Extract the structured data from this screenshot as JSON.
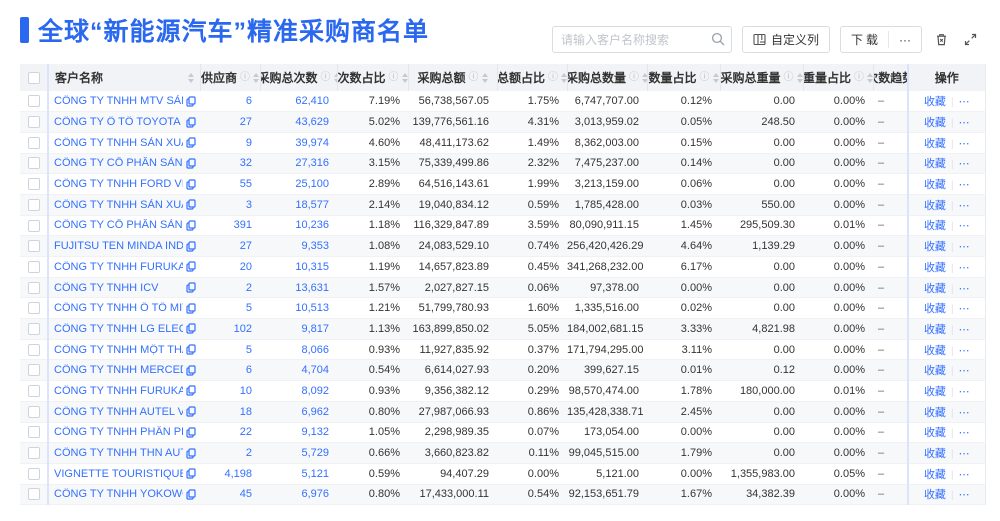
{
  "page": {
    "title": "全球“新能源汽车”精准采购商名单"
  },
  "colors": {
    "primary_blue": "#2968ef",
    "link_blue": "#3370ff",
    "header_bg": "#f2f3f7",
    "frozen_separator": "#dbe4fb"
  },
  "toolbar": {
    "search_placeholder": "请输入客户名称搜索",
    "search_icon": "magnifier",
    "custom_columns_label": "自定义列",
    "custom_columns_icon": "column-settings",
    "download_label": "下载",
    "more_label": "···",
    "trash_icon": "recycle-bin",
    "fullscreen_icon": "expand-arrows"
  },
  "table": {
    "columns": [
      {
        "key": "check",
        "label": "",
        "info": false,
        "sort": false
      },
      {
        "key": "name",
        "label": "客户名称",
        "info": false,
        "sort": true
      },
      {
        "key": "suppliers",
        "label": "供应商",
        "info": true,
        "sort": true
      },
      {
        "key": "purchase_count",
        "label": "采购总次数",
        "info": true,
        "sort": true
      },
      {
        "key": "count_pct",
        "label": "次数占比",
        "info": true,
        "sort": true
      },
      {
        "key": "purchase_amount",
        "label": "采购总额",
        "info": true,
        "sort": true
      },
      {
        "key": "amount_pct",
        "label": "总额占比",
        "info": true,
        "sort": true
      },
      {
        "key": "purchase_qty",
        "label": "采购总数量",
        "info": true,
        "sort": true
      },
      {
        "key": "qty_pct",
        "label": "数量占比",
        "info": true,
        "sort": true
      },
      {
        "key": "purchase_weight",
        "label": "采购总重量",
        "info": true,
        "sort": true
      },
      {
        "key": "weight_pct",
        "label": "重量占比",
        "info": true,
        "sort": true
      },
      {
        "key": "trend",
        "label": "次数趋势",
        "info": false,
        "sort": false
      },
      {
        "key": "action",
        "label": "操作",
        "info": false,
        "sort": false
      }
    ],
    "action_labels": {
      "favorite": "收藏",
      "divider": "|",
      "more": "⋯"
    },
    "rows": [
      {
        "name": "CÔNG TY TNHH MTV SẢN XUẤ...",
        "suppliers": "6",
        "purchase_count": "62,410",
        "count_pct": "7.19%",
        "purchase_amount": "56,738,567.05",
        "amount_pct": "1.75%",
        "purchase_qty": "6,747,707.00",
        "qty_pct": "0.12%",
        "purchase_weight": "0.00",
        "weight_pct": "0.00%",
        "trend": "–"
      },
      {
        "name": "CÔNG TY Ô TÔ TOYOTA VIỆT ...",
        "suppliers": "27",
        "purchase_count": "43,629",
        "count_pct": "5.02%",
        "purchase_amount": "139,776,561.16",
        "amount_pct": "4.31%",
        "purchase_qty": "3,013,959.02",
        "qty_pct": "0.05%",
        "purchase_weight": "248.50",
        "weight_pct": "0.00%",
        "trend": "–"
      },
      {
        "name": "CÔNG TY TNHH SẢN XUẤT VÀ ...",
        "suppliers": "9",
        "purchase_count": "39,974",
        "count_pct": "4.60%",
        "purchase_amount": "48,411,173.62",
        "amount_pct": "1.49%",
        "purchase_qty": "8,362,003.00",
        "qty_pct": "0.15%",
        "purchase_weight": "0.00",
        "weight_pct": "0.00%",
        "trend": "–"
      },
      {
        "name": "CÔNG TY CỔ PHẦN SẢN XUẤT...",
        "suppliers": "32",
        "purchase_count": "27,316",
        "count_pct": "3.15%",
        "purchase_amount": "75,339,499.86",
        "amount_pct": "2.32%",
        "purchase_qty": "7,475,237.00",
        "qty_pct": "0.14%",
        "purchase_weight": "0.00",
        "weight_pct": "0.00%",
        "trend": "–"
      },
      {
        "name": "CÔNG TY TNHH FORD VIỆT NAM",
        "suppliers": "55",
        "purchase_count": "25,100",
        "count_pct": "2.89%",
        "purchase_amount": "64,516,143.61",
        "amount_pct": "1.99%",
        "purchase_qty": "3,213,159.00",
        "qty_pct": "0.06%",
        "purchase_weight": "0.00",
        "weight_pct": "0.00%",
        "trend": "–"
      },
      {
        "name": "CÔNG TY TNHH SẢN XUẤT VÀ ...",
        "suppliers": "3",
        "purchase_count": "18,577",
        "count_pct": "2.14%",
        "purchase_amount": "19,040,834.12",
        "amount_pct": "0.59%",
        "purchase_qty": "1,785,428.00",
        "qty_pct": "0.03%",
        "purchase_weight": "550.00",
        "weight_pct": "0.00%",
        "trend": "–"
      },
      {
        "name": "CÔNG TY CỔ PHẦN SẢN XUẤT...",
        "suppliers": "391",
        "purchase_count": "10,236",
        "count_pct": "1.18%",
        "purchase_amount": "116,329,847.89",
        "amount_pct": "3.59%",
        "purchase_qty": "80,090,911.15",
        "qty_pct": "1.45%",
        "purchase_weight": "295,509.30",
        "weight_pct": "0.01%",
        "trend": "–"
      },
      {
        "name": "FUJITSU TEN MINDA INDIA PVT...",
        "suppliers": "27",
        "purchase_count": "9,353",
        "count_pct": "1.08%",
        "purchase_amount": "24,083,529.10",
        "amount_pct": "0.74%",
        "purchase_qty": "256,420,426.29",
        "qty_pct": "4.64%",
        "purchase_weight": "1,139.29",
        "weight_pct": "0.00%",
        "trend": "–"
      },
      {
        "name": "CÔNG TY TNHH FURUKAWA A...",
        "suppliers": "20",
        "purchase_count": "10,315",
        "count_pct": "1.19%",
        "purchase_amount": "14,657,823.89",
        "amount_pct": "0.45%",
        "purchase_qty": "341,268,232.00",
        "qty_pct": "6.17%",
        "purchase_weight": "0.00",
        "weight_pct": "0.00%",
        "trend": "–"
      },
      {
        "name": "CÔNG TY TNHH ICV",
        "suppliers": "2",
        "purchase_count": "13,631",
        "count_pct": "1.57%",
        "purchase_amount": "2,027,827.15",
        "amount_pct": "0.06%",
        "purchase_qty": "97,378.00",
        "qty_pct": "0.00%",
        "purchase_weight": "0.00",
        "weight_pct": "0.00%",
        "trend": "–"
      },
      {
        "name": "CÔNG TY TNHH Ô TÔ MITSUBI...",
        "suppliers": "5",
        "purchase_count": "10,513",
        "count_pct": "1.21%",
        "purchase_amount": "51,799,780.93",
        "amount_pct": "1.60%",
        "purchase_qty": "1,335,516.00",
        "qty_pct": "0.02%",
        "purchase_weight": "0.00",
        "weight_pct": "0.00%",
        "trend": "–"
      },
      {
        "name": "CÔNG TY TNHH LG ELECTRON...",
        "suppliers": "102",
        "purchase_count": "9,817",
        "count_pct": "1.13%",
        "purchase_amount": "163,899,850.02",
        "amount_pct": "5.05%",
        "purchase_qty": "184,002,681.15",
        "qty_pct": "3.33%",
        "purchase_weight": "4,821.98",
        "weight_pct": "0.00%",
        "trend": "–"
      },
      {
        "name": "CÔNG TY TNHH MỘT THÀNH V...",
        "suppliers": "5",
        "purchase_count": "8,066",
        "count_pct": "0.93%",
        "purchase_amount": "11,927,835.92",
        "amount_pct": "0.37%",
        "purchase_qty": "171,794,295.00",
        "qty_pct": "3.11%",
        "purchase_weight": "0.00",
        "weight_pct": "0.00%",
        "trend": "–"
      },
      {
        "name": "CÔNG TY TNHH MERCEDES–B...",
        "suppliers": "6",
        "purchase_count": "4,704",
        "count_pct": "0.54%",
        "purchase_amount": "6,614,027.93",
        "amount_pct": "0.20%",
        "purchase_qty": "399,627.15",
        "qty_pct": "0.01%",
        "purchase_weight": "0.12",
        "weight_pct": "0.00%",
        "trend": "–"
      },
      {
        "name": "CÔNG TY TNHH FURUKAWA A...",
        "suppliers": "10",
        "purchase_count": "8,092",
        "count_pct": "0.93%",
        "purchase_amount": "9,356,382.12",
        "amount_pct": "0.29%",
        "purchase_qty": "98,570,474.00",
        "qty_pct": "1.78%",
        "purchase_weight": "180,000.00",
        "weight_pct": "0.01%",
        "trend": "–"
      },
      {
        "name": "CÔNG TY TNHH AUTEL VIỆT N...",
        "suppliers": "18",
        "purchase_count": "6,962",
        "count_pct": "0.80%",
        "purchase_amount": "27,987,066.93",
        "amount_pct": "0.86%",
        "purchase_qty": "135,428,338.71",
        "qty_pct": "2.45%",
        "purchase_weight": "0.00",
        "weight_pct": "0.00%",
        "trend": "–"
      },
      {
        "name": "CÔNG TY TNHH PHÂN PHỐI T...",
        "suppliers": "22",
        "purchase_count": "9,132",
        "count_pct": "1.05%",
        "purchase_amount": "2,298,989.35",
        "amount_pct": "0.07%",
        "purchase_qty": "173,054.00",
        "qty_pct": "0.00%",
        "purchase_weight": "0.00",
        "weight_pct": "0.00%",
        "trend": "–"
      },
      {
        "name": "CÔNG TY TNHH THN AUTOPAR...",
        "suppliers": "2",
        "purchase_count": "5,729",
        "count_pct": "0.66%",
        "purchase_amount": "3,660,823.82",
        "amount_pct": "0.11%",
        "purchase_qty": "99,045,515.00",
        "qty_pct": "1.79%",
        "purchase_weight": "0.00",
        "weight_pct": "0.00%",
        "trend": "–"
      },
      {
        "name": "VIGNETTE TOURISTIQUE G UNI...",
        "suppliers": "4,198",
        "purchase_count": "5,121",
        "count_pct": "0.59%",
        "purchase_amount": "94,407.29",
        "amount_pct": "0.00%",
        "purchase_qty": "5,121.00",
        "qty_pct": "0.00%",
        "purchase_weight": "1,355,983.00",
        "weight_pct": "0.05%",
        "trend": "–"
      },
      {
        "name": "CÔNG TY TNHH YOKOWO VIỆT...",
        "suppliers": "45",
        "purchase_count": "6,976",
        "count_pct": "0.80%",
        "purchase_amount": "17,433,000.11",
        "amount_pct": "0.54%",
        "purchase_qty": "92,153,651.79",
        "qty_pct": "1.67%",
        "purchase_weight": "34,382.39",
        "weight_pct": "0.00%",
        "trend": "–"
      }
    ]
  }
}
